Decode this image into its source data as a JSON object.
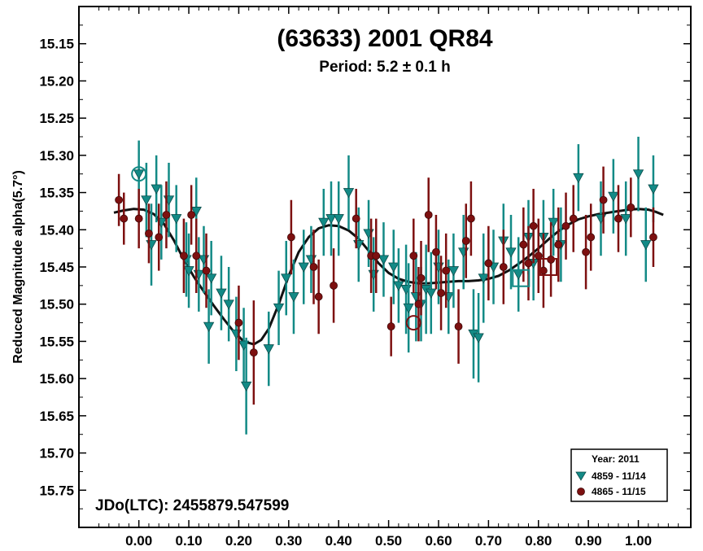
{
  "chart_data": {
    "type": "scatter",
    "title": "(63633) 2001 QR84",
    "subtitle": "Period: 5.2 ± 0.1 h",
    "ylabel": "Reduced Magnitude alpha(5.7°)",
    "xlabel": "",
    "x_range": [
      -0.12,
      1.105
    ],
    "y_range": [
      15.1,
      15.8
    ],
    "y_inverted": true,
    "grid": false,
    "legend_position": "bottom-right",
    "annotation": "JDo(LTC): 2455879.547599",
    "x_ticks": [
      0.0,
      0.1,
      0.2,
      0.3,
      0.4,
      0.5,
      0.6,
      0.7,
      0.8,
      0.9,
      1.0
    ],
    "x_tick_labels": [
      "0.00",
      "0.10",
      "0.20",
      "0.30",
      "0.40",
      "0.50",
      "0.60",
      "0.70",
      "0.80",
      "0.90",
      "1.00"
    ],
    "y_ticks": [
      15.15,
      15.2,
      15.25,
      15.3,
      15.35,
      15.4,
      15.45,
      15.5,
      15.55,
      15.6,
      15.65,
      15.7,
      15.75
    ],
    "y_tick_labels": [
      "15.15",
      "15.20",
      "15.25",
      "15.30",
      "15.35",
      "15.40",
      "15.45",
      "15.50",
      "15.55",
      "15.60",
      "15.65",
      "15.70",
      "15.75"
    ],
    "legend": {
      "title": "Year: 2011",
      "entries": [
        {
          "label": "4859 - 11/14",
          "marker": "triangle-down",
          "color": "#138a86"
        },
        {
          "label": "4865 - 11/15",
          "marker": "circle",
          "color": "#7d1010"
        }
      ]
    },
    "series": [
      {
        "name": "4859 - 11/14",
        "marker": "triangle-down",
        "color": "#138a86",
        "points": [
          [
            0.0,
            15.325,
            0.045
          ],
          [
            0.015,
            15.36,
            0.05
          ],
          [
            0.025,
            15.42,
            0.055
          ],
          [
            0.035,
            15.345,
            0.045
          ],
          [
            0.045,
            15.39,
            0.05
          ],
          [
            0.06,
            15.36,
            0.05
          ],
          [
            0.075,
            15.385,
            0.045
          ],
          [
            0.095,
            15.44,
            0.05
          ],
          [
            0.1,
            15.455,
            0.05
          ],
          [
            0.115,
            15.375,
            0.045
          ],
          [
            0.12,
            15.46,
            0.05
          ],
          [
            0.13,
            15.44,
            0.045
          ],
          [
            0.14,
            15.53,
            0.05
          ],
          [
            0.145,
            15.465,
            0.05
          ],
          [
            0.165,
            15.485,
            0.05
          ],
          [
            0.18,
            15.5,
            0.05
          ],
          [
            0.195,
            15.54,
            0.05
          ],
          [
            0.21,
            15.555,
            0.05
          ],
          [
            0.215,
            15.61,
            0.065
          ],
          [
            0.26,
            15.56,
            0.05
          ],
          [
            0.28,
            15.505,
            0.05
          ],
          [
            0.295,
            15.465,
            0.05
          ],
          [
            0.31,
            15.49,
            0.05
          ],
          [
            0.33,
            15.45,
            0.05
          ],
          [
            0.345,
            15.44,
            0.045
          ],
          [
            0.37,
            15.39,
            0.045
          ],
          [
            0.385,
            15.385,
            0.05
          ],
          [
            0.4,
            15.385,
            0.05
          ],
          [
            0.42,
            15.35,
            0.05
          ],
          [
            0.44,
            15.42,
            0.05
          ],
          [
            0.46,
            15.405,
            0.045
          ],
          [
            0.47,
            15.46,
            0.05
          ],
          [
            0.49,
            15.44,
            0.05
          ],
          [
            0.51,
            15.45,
            0.05
          ],
          [
            0.52,
            15.475,
            0.05
          ],
          [
            0.535,
            15.48,
            0.06
          ],
          [
            0.54,
            15.505,
            0.06
          ],
          [
            0.555,
            15.49,
            0.06
          ],
          [
            0.565,
            15.5,
            0.05
          ],
          [
            0.575,
            15.48,
            0.06
          ],
          [
            0.585,
            15.485,
            0.055
          ],
          [
            0.6,
            15.45,
            0.05
          ],
          [
            0.62,
            15.49,
            0.05
          ],
          [
            0.63,
            15.455,
            0.05
          ],
          [
            0.65,
            15.43,
            0.05
          ],
          [
            0.67,
            15.54,
            0.06
          ],
          [
            0.68,
            15.545,
            0.06
          ],
          [
            0.69,
            15.465,
            0.06
          ],
          [
            0.71,
            15.45,
            0.05
          ],
          [
            0.73,
            15.415,
            0.05
          ],
          [
            0.745,
            15.43,
            0.05
          ],
          [
            0.76,
            15.46,
            0.05
          ],
          [
            0.78,
            15.41,
            0.05
          ],
          [
            0.79,
            15.445,
            0.05
          ],
          [
            0.81,
            15.41,
            0.05
          ],
          [
            0.83,
            15.39,
            0.045
          ],
          [
            0.845,
            15.42,
            0.05
          ],
          [
            0.88,
            15.33,
            0.045
          ],
          [
            0.925,
            15.385,
            0.05
          ],
          [
            0.95,
            15.355,
            0.05
          ],
          [
            0.975,
            15.385,
            0.05
          ],
          [
            1.0,
            15.325,
            0.05
          ],
          [
            1.015,
            15.42,
            0.05
          ],
          [
            1.03,
            15.345,
            0.045
          ]
        ]
      },
      {
        "name": "4865 - 11/15",
        "marker": "circle",
        "color": "#7d1010",
        "points": [
          [
            -0.04,
            15.36,
            0.035
          ],
          [
            -0.03,
            15.385,
            0.035
          ],
          [
            0.0,
            15.385,
            0.04
          ],
          [
            0.02,
            15.405,
            0.04
          ],
          [
            0.04,
            15.41,
            0.045
          ],
          [
            0.055,
            15.38,
            0.045
          ],
          [
            0.09,
            15.435,
            0.05
          ],
          [
            0.105,
            15.38,
            0.04
          ],
          [
            0.115,
            15.435,
            0.05
          ],
          [
            0.135,
            15.455,
            0.05
          ],
          [
            0.2,
            15.525,
            0.05
          ],
          [
            0.23,
            15.565,
            0.07
          ],
          [
            0.305,
            15.41,
            0.05
          ],
          [
            0.35,
            15.45,
            0.05
          ],
          [
            0.36,
            15.49,
            0.05
          ],
          [
            0.39,
            15.475,
            0.05
          ],
          [
            0.435,
            15.385,
            0.04
          ],
          [
            0.465,
            15.435,
            0.05
          ],
          [
            0.475,
            15.435,
            0.05
          ],
          [
            0.505,
            15.53,
            0.04
          ],
          [
            0.55,
            15.435,
            0.05
          ],
          [
            0.56,
            15.5,
            0.05
          ],
          [
            0.565,
            15.465,
            0.05
          ],
          [
            0.58,
            15.38,
            0.05
          ],
          [
            0.595,
            15.43,
            0.05
          ],
          [
            0.605,
            15.485,
            0.05
          ],
          [
            0.615,
            15.455,
            0.05
          ],
          [
            0.64,
            15.53,
            0.05
          ],
          [
            0.655,
            15.415,
            0.05
          ],
          [
            0.665,
            15.385,
            0.05
          ],
          [
            0.7,
            15.445,
            0.05
          ],
          [
            0.73,
            15.45,
            0.05
          ],
          [
            0.77,
            15.42,
            0.05
          ],
          [
            0.78,
            15.445,
            0.05
          ],
          [
            0.79,
            15.395,
            0.05
          ],
          [
            0.8,
            15.435,
            0.05
          ],
          [
            0.81,
            15.455,
            0.05
          ],
          [
            0.825,
            15.44,
            0.05
          ],
          [
            0.84,
            15.42,
            0.05
          ],
          [
            0.855,
            15.395,
            0.045
          ],
          [
            0.87,
            15.385,
            0.045
          ],
          [
            0.895,
            15.43,
            0.05
          ],
          [
            0.905,
            15.41,
            0.045
          ],
          [
            0.93,
            15.36,
            0.045
          ],
          [
            0.96,
            15.385,
            0.045
          ],
          [
            0.985,
            15.37,
            0.04
          ],
          [
            1.03,
            15.41,
            0.04
          ]
        ]
      },
      {
        "name": "",
        "type": "line",
        "color": "#111111",
        "points": [
          [
            -0.05,
            15.377
          ],
          [
            -0.03,
            15.374
          ],
          [
            -0.01,
            15.372
          ],
          [
            0.01,
            15.373
          ],
          [
            0.03,
            15.379
          ],
          [
            0.05,
            15.392
          ],
          [
            0.07,
            15.414
          ],
          [
            0.09,
            15.44
          ],
          [
            0.11,
            15.463
          ],
          [
            0.13,
            15.483
          ],
          [
            0.15,
            15.502
          ],
          [
            0.17,
            15.52
          ],
          [
            0.19,
            15.537
          ],
          [
            0.21,
            15.55
          ],
          [
            0.23,
            15.554
          ],
          [
            0.245,
            15.548
          ],
          [
            0.26,
            15.533
          ],
          [
            0.28,
            15.5
          ],
          [
            0.3,
            15.462
          ],
          [
            0.32,
            15.43
          ],
          [
            0.34,
            15.41
          ],
          [
            0.36,
            15.398
          ],
          [
            0.38,
            15.394
          ],
          [
            0.4,
            15.395
          ],
          [
            0.42,
            15.401
          ],
          [
            0.44,
            15.412
          ],
          [
            0.46,
            15.428
          ],
          [
            0.48,
            15.445
          ],
          [
            0.5,
            15.458
          ],
          [
            0.52,
            15.466
          ],
          [
            0.54,
            15.47
          ],
          [
            0.56,
            15.472
          ],
          [
            0.58,
            15.472
          ],
          [
            0.6,
            15.471
          ],
          [
            0.62,
            15.47
          ],
          [
            0.64,
            15.469
          ],
          [
            0.66,
            15.469
          ],
          [
            0.68,
            15.468
          ],
          [
            0.7,
            15.466
          ],
          [
            0.72,
            15.462
          ],
          [
            0.74,
            15.455
          ],
          [
            0.76,
            15.446
          ],
          [
            0.78,
            15.436
          ],
          [
            0.8,
            15.425
          ],
          [
            0.82,
            15.413
          ],
          [
            0.84,
            15.402
          ],
          [
            0.86,
            15.393
          ],
          [
            0.88,
            15.386
          ],
          [
            0.9,
            15.382
          ],
          [
            0.92,
            15.379
          ],
          [
            0.94,
            15.377
          ],
          [
            0.96,
            15.375
          ],
          [
            0.98,
            15.373
          ],
          [
            1.0,
            15.372
          ],
          [
            1.02,
            15.373
          ],
          [
            1.035,
            15.376
          ],
          [
            1.05,
            15.38
          ]
        ]
      }
    ],
    "highlights": [
      {
        "x": 0.0,
        "y": 15.325,
        "shape": "circle",
        "color": "#138a86"
      },
      {
        "x": 0.55,
        "y": 15.525,
        "shape": "circle",
        "color": "#7d1010"
      },
      {
        "x": 0.765,
        "y": 15.465,
        "shape": "square",
        "color": "#138a86"
      },
      {
        "x": 0.82,
        "y": 15.45,
        "shape": "square",
        "color": "#7d1010"
      }
    ]
  }
}
